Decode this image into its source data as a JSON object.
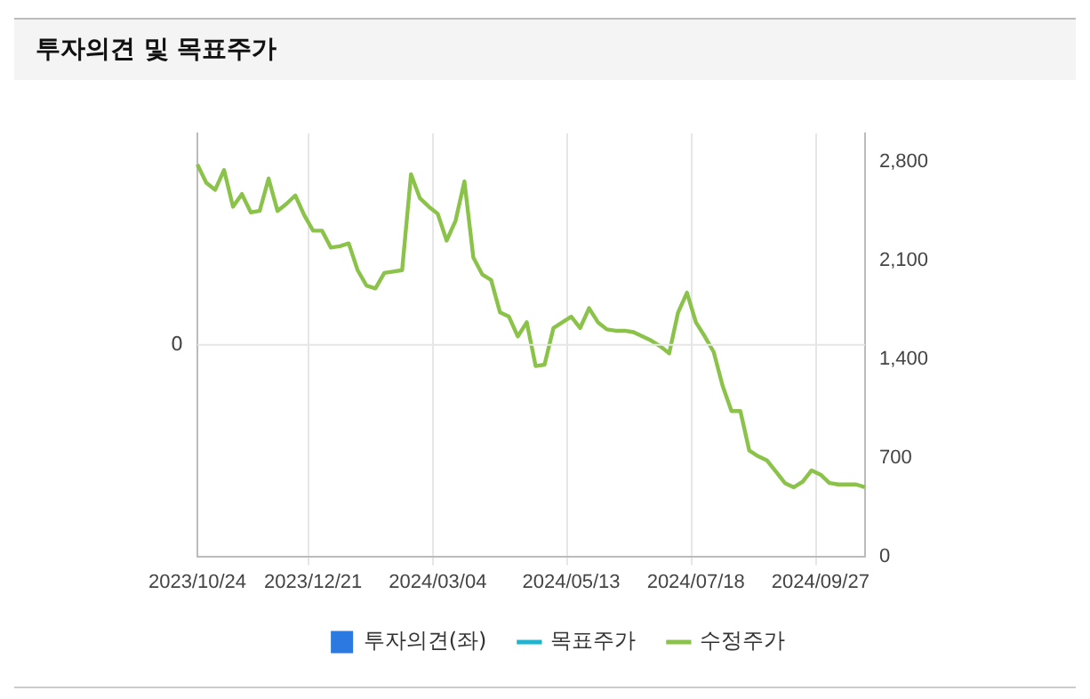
{
  "chart_data": {
    "type": "line",
    "title": "투자의견 및 목표주가",
    "categories": [
      "2023/10/24",
      null,
      null,
      null,
      null,
      null,
      null,
      null,
      null,
      null,
      null,
      null,
      null,
      "2023/12/21",
      null,
      null,
      null,
      null,
      null,
      null,
      null,
      null,
      null,
      null,
      null,
      null,
      null,
      "2024/03/04",
      null,
      null,
      null,
      null,
      null,
      null,
      null,
      null,
      null,
      null,
      null,
      null,
      null,
      null,
      "2024/05/13",
      null,
      null,
      null,
      null,
      null,
      null,
      null,
      null,
      null,
      null,
      null,
      null,
      null,
      "2024/07/18",
      null,
      null,
      null,
      null,
      null,
      null,
      null,
      null,
      null,
      null,
      null,
      null,
      null,
      "2024/09/27",
      null,
      null,
      null,
      null,
      null
    ],
    "series": [
      {
        "name": "투자의견(좌)",
        "type": "bar",
        "axis": "y",
        "color": "#2a7ae2",
        "values": [
          null,
          null,
          null,
          null,
          null,
          null,
          null,
          null,
          null,
          null,
          null,
          null,
          null,
          null,
          null,
          null,
          null,
          null,
          null,
          null,
          null,
          null,
          null,
          null,
          null,
          null,
          null,
          null,
          null,
          null,
          null,
          null,
          null,
          null,
          null,
          null,
          null,
          null,
          null,
          null,
          null,
          null,
          null,
          null,
          null,
          null,
          null,
          null,
          null,
          null,
          null,
          null,
          null,
          null,
          null,
          null,
          null,
          null,
          null,
          null,
          null,
          null,
          null,
          null,
          null,
          null,
          null,
          null,
          null,
          null,
          null,
          null,
          null,
          null,
          null,
          null
        ]
      },
      {
        "name": "목표주가",
        "type": "line",
        "axis": "y2",
        "color": "#1fb5d0",
        "values": [
          null,
          null,
          null,
          null,
          null,
          null,
          null,
          null,
          null,
          null,
          null,
          null,
          null,
          null,
          null,
          null,
          null,
          null,
          null,
          null,
          null,
          null,
          null,
          null,
          null,
          null,
          null,
          null,
          null,
          null,
          null,
          null,
          null,
          null,
          null,
          null,
          null,
          null,
          null,
          null,
          null,
          null,
          null,
          null,
          null,
          null,
          null,
          null,
          null,
          null,
          null,
          null,
          null,
          null,
          null,
          null,
          null,
          null,
          null,
          null,
          null,
          null,
          null,
          null,
          null,
          null,
          null,
          null,
          null,
          null,
          null,
          null,
          null,
          null,
          null,
          null
        ]
      },
      {
        "name": "수정주가",
        "axis": "y2",
        "color": "#8bc34a",
        "values": [
          2780,
          2650,
          2600,
          2740,
          2480,
          2570,
          2440,
          2450,
          2680,
          2450,
          2500,
          2560,
          2420,
          2310,
          2310,
          2190,
          2200,
          2220,
          2030,
          1920,
          1900,
          2010,
          2020,
          2030,
          2710,
          2540,
          2480,
          2430,
          2240,
          2380,
          2660,
          2120,
          2000,
          1960,
          1730,
          1700,
          1560,
          1660,
          1350,
          1360,
          1620,
          1660,
          1700,
          1620,
          1760,
          1660,
          1610,
          1600,
          1600,
          1590,
          1560,
          1530,
          1490,
          1440,
          1730,
          1870,
          1660,
          1560,
          1450,
          1210,
          1030,
          1030,
          750,
          710,
          680,
          600,
          520,
          490,
          530,
          610,
          580,
          520,
          510,
          510,
          510,
          490
        ]
      }
    ],
    "annotations": [
      "0"
    ],
    "y2lim": [
      0,
      3000
    ],
    "y2ticks": [
      0,
      700,
      {
        "value": 1400,
        "label": "1,400"
      },
      {
        "value": 2100,
        "label": "2,100"
      },
      {
        "value": 2800,
        "label": "2,800"
      }
    ],
    "grid": true,
    "legend": "bottom",
    "marker": "none",
    "line_style": "solid"
  }
}
